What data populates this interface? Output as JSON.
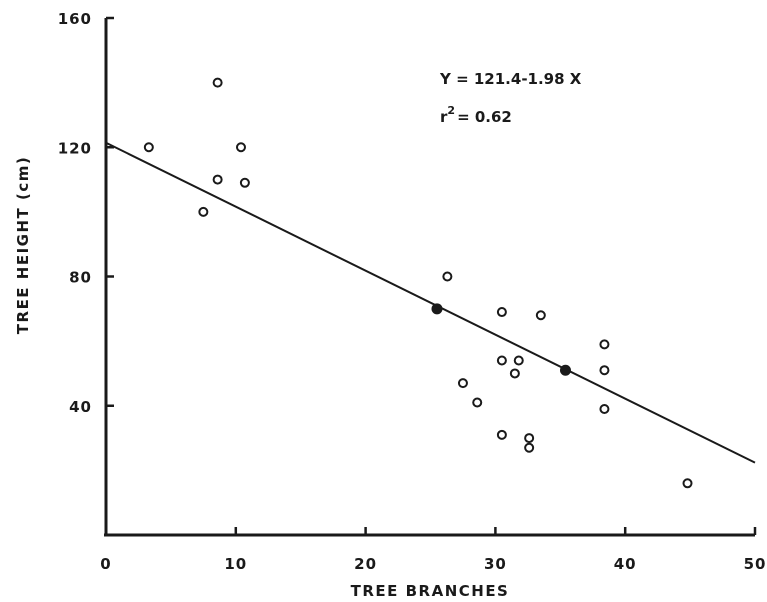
{
  "chart_data": {
    "type": "scatter",
    "title": "",
    "xlabel": "TREE BRANCHES",
    "ylabel": "TREE HEIGHT  (cm)",
    "xlim": [
      0,
      50
    ],
    "ylim": [
      0,
      160
    ],
    "x_ticks": [
      0,
      10,
      20,
      30,
      40,
      50
    ],
    "y_ticks": [
      40,
      80,
      120,
      160
    ],
    "x_tick_labels": [
      "0",
      "10",
      "20",
      "30",
      "40",
      "50"
    ],
    "y_tick_labels": [
      "40",
      "80",
      "120",
      "160"
    ],
    "grid": false,
    "legend": "none",
    "annotations": {
      "equation": "Y = 121.4-1.98 X",
      "r2_prefix": "r",
      "r2_exp": "2",
      "r2_value": "= 0.62"
    },
    "regression": {
      "intercept": 121.4,
      "slope": -1.98,
      "x_range": [
        0,
        50
      ]
    },
    "points": [
      {
        "x": 3.3,
        "y": 120,
        "style": "open"
      },
      {
        "x": 7.5,
        "y": 100,
        "style": "open"
      },
      {
        "x": 8.6,
        "y": 140,
        "style": "open"
      },
      {
        "x": 8.6,
        "y": 110,
        "style": "open"
      },
      {
        "x": 10.4,
        "y": 120,
        "style": "open"
      },
      {
        "x": 10.7,
        "y": 109,
        "style": "open"
      },
      {
        "x": 25.5,
        "y": 70,
        "style": "filled"
      },
      {
        "x": 26.3,
        "y": 80,
        "style": "open"
      },
      {
        "x": 27.5,
        "y": 47,
        "style": "open"
      },
      {
        "x": 28.6,
        "y": 41,
        "style": "open"
      },
      {
        "x": 30.5,
        "y": 69,
        "style": "open"
      },
      {
        "x": 30.5,
        "y": 54,
        "style": "open"
      },
      {
        "x": 30.5,
        "y": 31,
        "style": "open"
      },
      {
        "x": 31.5,
        "y": 50,
        "style": "open"
      },
      {
        "x": 31.8,
        "y": 54,
        "style": "open"
      },
      {
        "x": 32.6,
        "y": 30,
        "style": "open"
      },
      {
        "x": 32.6,
        "y": 27,
        "style": "open"
      },
      {
        "x": 33.5,
        "y": 68,
        "style": "open"
      },
      {
        "x": 35.4,
        "y": 51,
        "style": "filled"
      },
      {
        "x": 38.4,
        "y": 59,
        "style": "open"
      },
      {
        "x": 38.4,
        "y": 51,
        "style": "open"
      },
      {
        "x": 38.4,
        "y": 39,
        "style": "open"
      },
      {
        "x": 44.8,
        "y": 16,
        "style": "open"
      }
    ]
  }
}
